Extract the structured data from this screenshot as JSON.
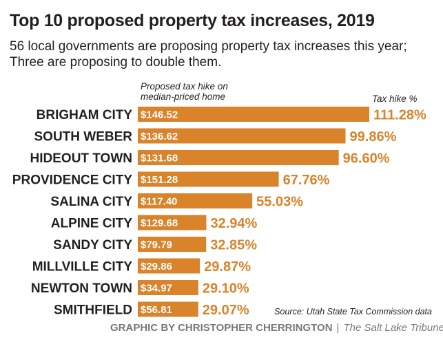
{
  "title": "Top 10 proposed property tax increases, 2019",
  "subtitle": "56 local governments are proposing property tax increases this year; Three are proposing to double them.",
  "colors": {
    "bar": "#d9832b",
    "pct_text": "#d9832b",
    "label": "#231f20",
    "credit": "#77787b"
  },
  "chart_data": {
    "type": "bar",
    "orientation": "horizontal",
    "bar_header": "Proposed tax hike on median-priced home",
    "value_header": "Tax hike %",
    "categories": [
      "BRIGHAM CITY",
      "SOUTH WEBER",
      "HIDEOUT TOWN",
      "PROVIDENCE CITY",
      "SALINA CITY",
      "ALPINE CITY",
      "SANDY CITY",
      "MILLVILLE CITY",
      "NEWTON TOWN",
      "SMITHFIELD"
    ],
    "values": [
      111.28,
      99.86,
      96.6,
      67.76,
      55.03,
      32.94,
      32.85,
      29.87,
      29.1,
      29.07
    ],
    "value_labels": [
      "111.28%",
      "99.86%",
      "96.60%",
      "67.76%",
      "55.03%",
      "32.94%",
      "32.85%",
      "29.87%",
      "29.10%",
      "29.07%"
    ],
    "bar_labels": [
      "$146.52",
      "$136.62",
      "$131.68",
      "$151.28",
      "$117.40",
      "$129.68",
      "$79.79",
      "$29.86",
      "$34.97",
      "$56.81"
    ],
    "xlim": [
      0,
      111.28
    ]
  },
  "source": "Source: Utah State Tax Commission data",
  "credit": {
    "byline": "GRAPHIC BY CHRISTOPHER CHERRINGTON",
    "separator": "|",
    "publication": "The Salt Lake Tribune"
  }
}
